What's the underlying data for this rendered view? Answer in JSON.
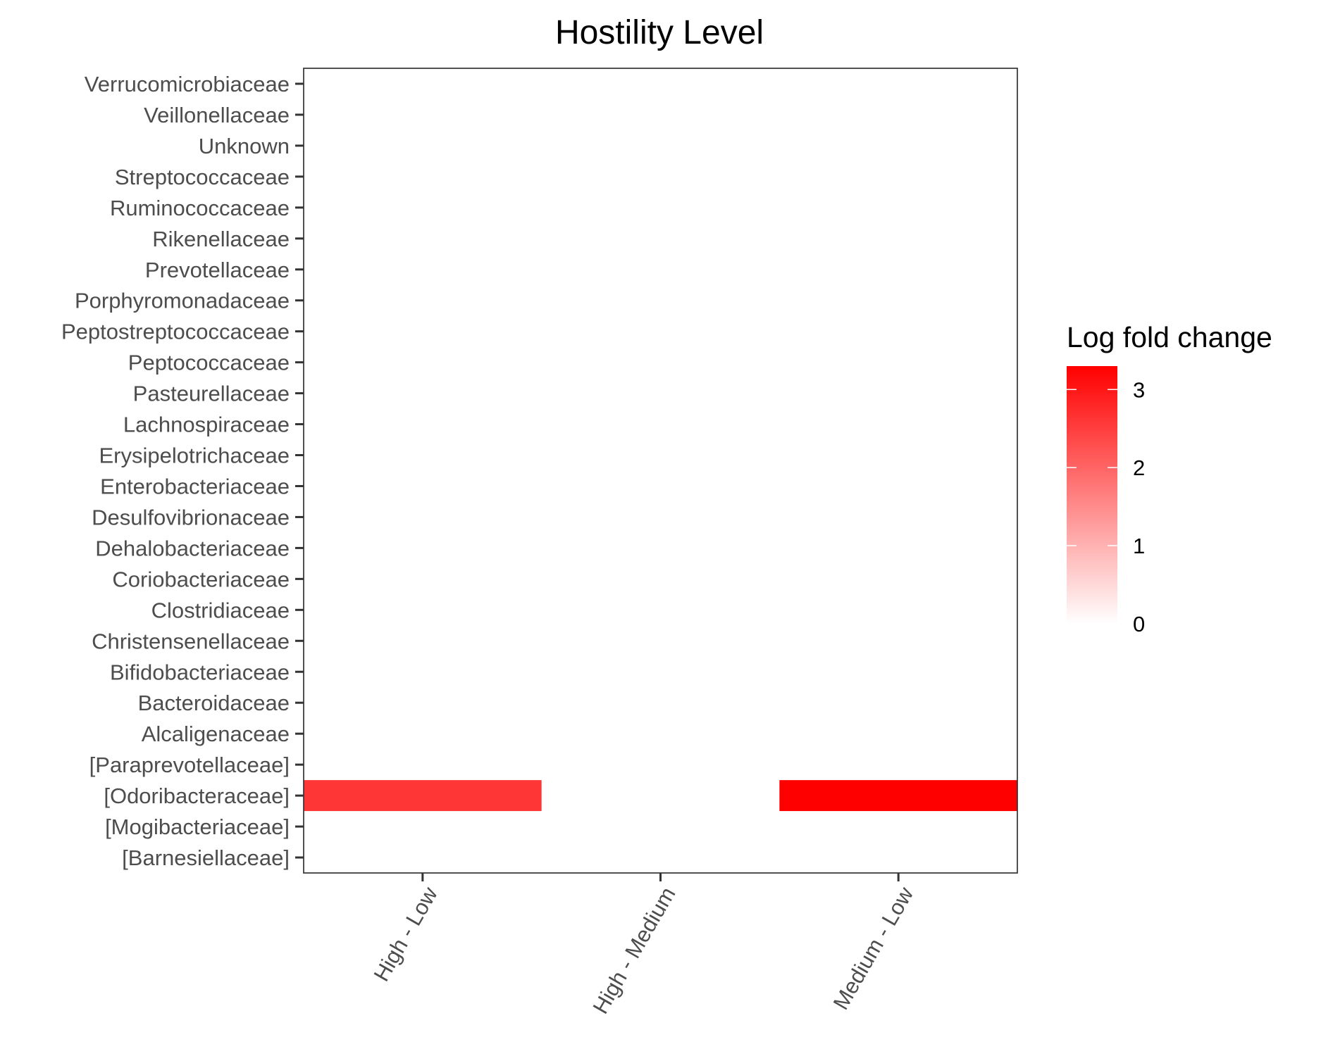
{
  "chart_data": {
    "type": "heatmap",
    "title": "Hostility Level",
    "xlabel": "",
    "ylabel": "",
    "x_categories": [
      "High - Low",
      "High - Medium",
      "Medium - Low"
    ],
    "y_categories": [
      "[Barnesiellaceae]",
      "[Mogibacteriaceae]",
      "[Odoribacteraceae]",
      "[Paraprevotellaceae]",
      "Alcaligenaceae",
      "Bacteroidaceae",
      "Bifidobacteriaceae",
      "Christensenellaceae",
      "Clostridiaceae",
      "Coriobacteriaceae",
      "Dehalobacteriaceae",
      "Desulfovibrionaceae",
      "Enterobacteriaceae",
      "Erysipelotrichaceae",
      "Lachnospiraceae",
      "Pasteurellaceae",
      "Peptococcaceae",
      "Peptostreptococcaceae",
      "Porphyromonadaceae",
      "Prevotellaceae",
      "Rikenellaceae",
      "Ruminococcaceae",
      "Streptococcaceae",
      "Unknown",
      "Veillonellaceae",
      "Verrucomicrobiaceae"
    ],
    "cells": [
      {
        "x": "High - Low",
        "y": "[Odoribacteraceae]",
        "value": 2.6
      },
      {
        "x": "Medium - Low",
        "y": "[Odoribacteraceae]",
        "value": 3.3
      }
    ],
    "legend": {
      "title": "Log fold change",
      "ticks": [
        0,
        1,
        2,
        3
      ],
      "range": [
        0,
        3.3
      ],
      "low_color": "#ffffff",
      "high_color": "#ff0000",
      "placement": "right"
    },
    "grid": false
  }
}
